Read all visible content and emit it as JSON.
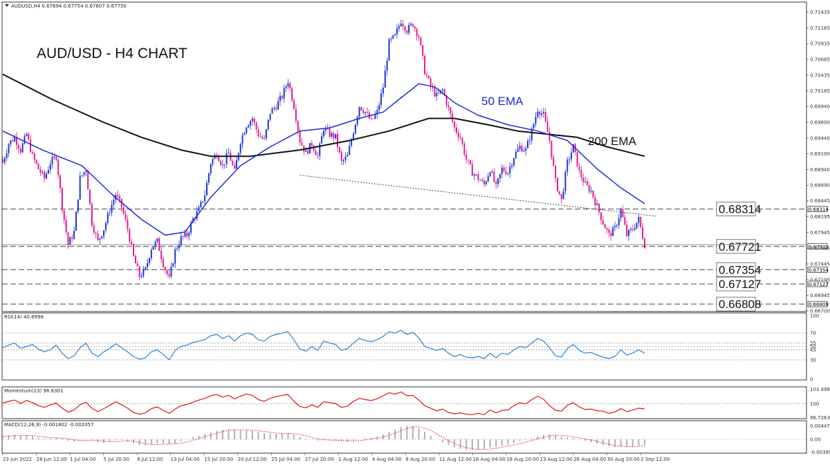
{
  "header": {
    "symbol_line": "AUDUSD,H4 0.67694 0.67754 0.67607 0.67750",
    "chart_title": "AUD/USD - H4 CHART"
  },
  "annotations": {
    "ema50": "50 EMA",
    "ema200": "200 EMA"
  },
  "colors": {
    "bull_candle": "#1a33d8",
    "bear_candle": "#e0188c",
    "ema50": "#1c2bd6",
    "ema200": "#111111",
    "rsi": "#2a82d4",
    "momentum": "#e01010",
    "macd_hist": "#b0b0b0",
    "macd_signal": "#e03030"
  },
  "chart_data": [
    {
      "type": "candlestick",
      "title": "AUD/USD - H4 CHART",
      "price_axis_ticks": [
        "0.71435",
        "0.71185",
        "0.70935",
        "0.70685",
        "0.70435",
        "0.70185",
        "0.69940",
        "0.69690",
        "0.69440",
        "0.69190",
        "0.68940",
        "0.68690",
        "0.68445",
        "0.68195",
        "0.67945",
        "0.67695",
        "0.67445",
        "0.67195",
        "0.66945",
        "0.66700"
      ],
      "ylim": [
        0.667,
        0.715
      ],
      "time_axis_labels": [
        "23 Jun 2022",
        "28 Jun 12:00",
        "1 Jul 04:00",
        "5 Jul 20:00",
        "8 Jul 12:00",
        "13 Jul 04:00",
        "15 Jul 20:00",
        "20 Jul 12:00",
        "25 Jul 04:00",
        "27 Jul 20:00",
        "1 Aug 12:00",
        "4 Aug 04:00",
        "8 Aug 20:00",
        "11 Aug 12:00",
        "16 Aug 04:00",
        "18 Aug 20:00",
        "23 Aug 12:00",
        "26 Aug 04:00",
        "30 Aug 20:00",
        "2 Sep 12:00"
      ],
      "close_path": [
        [
          0,
          0.6905
        ],
        [
          3,
          0.6935
        ],
        [
          6,
          0.6945
        ],
        [
          9,
          0.6925
        ],
        [
          12,
          0.695
        ],
        [
          15,
          0.6915
        ],
        [
          18,
          0.6895
        ],
        [
          21,
          0.688
        ],
        [
          24,
          0.6905
        ],
        [
          27,
          0.6915
        ],
        [
          30,
          0.6835
        ],
        [
          33,
          0.6775
        ],
        [
          36,
          0.6795
        ],
        [
          39,
          0.688
        ],
        [
          42,
          0.6895
        ],
        [
          45,
          0.681
        ],
        [
          48,
          0.678
        ],
        [
          51,
          0.68
        ],
        [
          54,
          0.683
        ],
        [
          57,
          0.6855
        ],
        [
          60,
          0.6835
        ],
        [
          63,
          0.68
        ],
        [
          66,
          0.6755
        ],
        [
          69,
          0.6725
        ],
        [
          72,
          0.6735
        ],
        [
          75,
          0.677
        ],
        [
          78,
          0.678
        ],
        [
          81,
          0.6745
        ],
        [
          84,
          0.672
        ],
        [
          87,
          0.6765
        ],
        [
          90,
          0.6785
        ],
        [
          93,
          0.679
        ],
        [
          96,
          0.6815
        ],
        [
          99,
          0.683
        ],
        [
          102,
          0.6855
        ],
        [
          105,
          0.6905
        ],
        [
          108,
          0.692
        ],
        [
          111,
          0.69
        ],
        [
          114,
          0.692
        ],
        [
          117,
          0.689
        ],
        [
          120,
          0.694
        ],
        [
          123,
          0.6965
        ],
        [
          126,
          0.6975
        ],
        [
          129,
          0.695
        ],
        [
          132,
          0.694
        ],
        [
          135,
          0.6985
        ],
        [
          138,
          0.6995
        ],
        [
          141,
          0.701
        ],
        [
          144,
          0.7035
        ],
        [
          147,
          0.6995
        ],
        [
          150,
          0.694
        ],
        [
          153,
          0.692
        ],
        [
          156,
          0.6935
        ],
        [
          159,
          0.6915
        ],
        [
          162,
          0.696
        ],
        [
          165,
          0.695
        ],
        [
          168,
          0.6945
        ],
        [
          171,
          0.6905
        ],
        [
          174,
          0.6915
        ],
        [
          177,
          0.6955
        ],
        [
          180,
          0.6995
        ],
        [
          183,
          0.6985
        ],
        [
          186,
          0.697
        ],
        [
          189,
          0.6985
        ],
        [
          192,
          0.7025
        ],
        [
          195,
          0.7095
        ],
        [
          198,
          0.7105
        ],
        [
          201,
          0.713
        ],
        [
          204,
          0.7115
        ],
        [
          207,
          0.7125
        ],
        [
          210,
          0.7105
        ],
        [
          213,
          0.705
        ],
        [
          216,
          0.7025
        ],
        [
          219,
          0.701
        ],
        [
          222,
          0.702
        ],
        [
          225,
          0.699
        ],
        [
          228,
          0.696
        ],
        [
          231,
          0.6945
        ],
        [
          234,
          0.691
        ],
        [
          237,
          0.689
        ],
        [
          240,
          0.688
        ],
        [
          243,
          0.687
        ],
        [
          246,
          0.6895
        ],
        [
          249,
          0.6865
        ],
        [
          252,
          0.6895
        ],
        [
          255,
          0.689
        ],
        [
          258,
          0.6915
        ],
        [
          261,
          0.693
        ],
        [
          264,
          0.6925
        ],
        [
          267,
          0.6955
        ],
        [
          270,
          0.699
        ],
        [
          273,
          0.698
        ],
        [
          276,
          0.694
        ],
        [
          279,
          0.6875
        ],
        [
          282,
          0.6845
        ],
        [
          285,
          0.6905
        ],
        [
          288,
          0.693
        ],
        [
          291,
          0.689
        ],
        [
          294,
          0.687
        ],
        [
          297,
          0.686
        ],
        [
          300,
          0.6835
        ],
        [
          303,
          0.681
        ],
        [
          306,
          0.679
        ],
        [
          309,
          0.68
        ],
        [
          312,
          0.683
        ],
        [
          315,
          0.679
        ],
        [
          318,
          0.68
        ],
        [
          321,
          0.6815
        ],
        [
          324,
          0.6775
        ]
      ],
      "ema_50": [
        [
          0,
          0.6955
        ],
        [
          20,
          0.6925
        ],
        [
          40,
          0.69
        ],
        [
          55,
          0.6855
        ],
        [
          70,
          0.6815
        ],
        [
          82,
          0.679
        ],
        [
          92,
          0.6795
        ],
        [
          105,
          0.685
        ],
        [
          120,
          0.69
        ],
        [
          135,
          0.693
        ],
        [
          150,
          0.6955
        ],
        [
          165,
          0.696
        ],
        [
          180,
          0.6975
        ],
        [
          192,
          0.6985
        ],
        [
          200,
          0.7005
        ],
        [
          210,
          0.703
        ],
        [
          218,
          0.7025
        ],
        [
          228,
          0.7
        ],
        [
          240,
          0.698
        ],
        [
          255,
          0.6965
        ],
        [
          270,
          0.6955
        ],
        [
          285,
          0.694
        ],
        [
          300,
          0.6895
        ],
        [
          312,
          0.6865
        ],
        [
          324,
          0.684
        ]
      ],
      "ema_200": [
        [
          0,
          0.7045
        ],
        [
          25,
          0.7005
        ],
        [
          50,
          0.697
        ],
        [
          70,
          0.6945
        ],
        [
          90,
          0.6925
        ],
        [
          105,
          0.6915
        ],
        [
          125,
          0.6915
        ],
        [
          150,
          0.6925
        ],
        [
          175,
          0.694
        ],
        [
          195,
          0.6955
        ],
        [
          215,
          0.6975
        ],
        [
          228,
          0.6975
        ],
        [
          245,
          0.6965
        ],
        [
          260,
          0.6955
        ],
        [
          275,
          0.695
        ],
        [
          290,
          0.6945
        ],
        [
          305,
          0.693
        ],
        [
          324,
          0.6915
        ]
      ],
      "trendline": [
        [
          150,
          0.6885
        ],
        [
          330,
          0.682
        ]
      ],
      "horizontal_levels": [
        {
          "value": 0.68314,
          "label": "0.68314"
        },
        {
          "value": 0.67721,
          "label": "0.67721"
        },
        {
          "value": 0.67354,
          "label": "0.67354"
        },
        {
          "value": 0.67127,
          "label": "0.67127"
        },
        {
          "value": 0.66808,
          "label": "0.66808"
        }
      ],
      "annotations": [
        "50 EMA",
        "200 EMA"
      ]
    },
    {
      "type": "line",
      "title": "RSI(14) 40.6998",
      "ylim": [
        0,
        100
      ],
      "axis_ticks": [
        "100",
        "70",
        "55",
        "50",
        "45",
        "30",
        "0"
      ],
      "reference_levels": [
        70,
        55,
        50,
        45,
        30
      ],
      "values": [
        48,
        52,
        55,
        47,
        50,
        53,
        46,
        42,
        45,
        52,
        40,
        32,
        36,
        48,
        55,
        40,
        35,
        42,
        47,
        54,
        48,
        42,
        35,
        31,
        33,
        42,
        45,
        38,
        30,
        44,
        50,
        52,
        56,
        58,
        60,
        66,
        68,
        62,
        66,
        58,
        66,
        70,
        68,
        60,
        58,
        65,
        68,
        70,
        72,
        60,
        46,
        43,
        50,
        44,
        58,
        55,
        53,
        44,
        47,
        55,
        62,
        59,
        57,
        60,
        65,
        72,
        70,
        74,
        68,
        71,
        63,
        50,
        47,
        44,
        47,
        40,
        35,
        38,
        34,
        33,
        35,
        32,
        40,
        33,
        40,
        38,
        45,
        50,
        48,
        55,
        62,
        58,
        48,
        36,
        34,
        47,
        53,
        44,
        40,
        41,
        37,
        34,
        32,
        35,
        45,
        37,
        40,
        45,
        40
      ]
    },
    {
      "type": "line",
      "title": "Momentum(23) 98.8301",
      "axis_ticks": [
        "103.4984",
        "100",
        "96.7263"
      ],
      "reference_levels": [
        100
      ],
      "values": [
        100.2,
        100.6,
        100.9,
        100.1,
        100.8,
        100.3,
        99.6,
        99.2,
        99.8,
        100.2,
        99.0,
        98.1,
        98.6,
        99.8,
        100.4,
        99.0,
        98.2,
        98.9,
        99.7,
        100.5,
        99.8,
        99.0,
        98.0,
        97.6,
        97.9,
        98.9,
        99.3,
        98.5,
        97.8,
        98.8,
        99.6,
        99.9,
        100.4,
        100.9,
        101.3,
        101.9,
        102.2,
        101.6,
        102.0,
        101.2,
        101.8,
        102.3,
        102.0,
        101.0,
        100.6,
        101.3,
        101.7,
        102.0,
        102.2,
        100.6,
        99.4,
        99.1,
        99.8,
        99.2,
        100.5,
        100.3,
        100.1,
        99.2,
        99.5,
        100.6,
        101.3,
        101.0,
        100.8,
        101.2,
        101.9,
        102.6,
        102.3,
        102.8,
        101.9,
        102.0,
        100.9,
        99.6,
        99.0,
        98.4,
        98.8,
        98.0,
        97.7,
        97.9,
        97.6,
        97.5,
        97.8,
        97.5,
        98.6,
        97.9,
        98.5,
        98.6,
        99.6,
        100.3,
        100.0,
        101.0,
        101.8,
        101.1,
        99.6,
        98.5,
        98.3,
        99.7,
        100.3,
        99.3,
        98.7,
        98.8,
        98.4,
        98.3,
        97.8,
        98.1,
        98.9,
        98.2,
        98.6,
        99.0,
        98.8
      ]
    },
    {
      "type": "bar",
      "title": "MACD(12,26,9) -0.001802 -0.002057",
      "axis_ticks": [
        "0.00447",
        "0.00",
        "-0.003999"
      ],
      "reference_levels": [
        0
      ],
      "values": [
        0.001,
        0.0012,
        0.0014,
        0.0011,
        0.0013,
        0.001,
        0.0006,
        0.0003,
        0.0004,
        0.0006,
        0.0002,
        -0.0005,
        -0.0008,
        -0.0004,
        0.0001,
        -0.0003,
        -0.0009,
        -0.0011,
        -0.0008,
        -0.0003,
        -0.0002,
        -0.0006,
        -0.0012,
        -0.0018,
        -0.002,
        -0.0017,
        -0.0013,
        -0.0014,
        -0.0017,
        -0.0013,
        -0.0006,
        0.0,
        0.0006,
        0.0012,
        0.0017,
        0.0023,
        0.0028,
        0.0031,
        0.0033,
        0.0032,
        0.003,
        0.0029,
        0.0028,
        0.0025,
        0.0021,
        0.0019,
        0.0018,
        0.0019,
        0.002,
        0.0015,
        0.0008,
        0.0002,
        0.0,
        -0.0004,
        -0.0003,
        -0.0002,
        -0.0003,
        -0.0006,
        -0.0007,
        -0.0004,
        0.0,
        0.0003,
        0.0005,
        0.0009,
        0.0015,
        0.0024,
        0.0033,
        0.004,
        0.0044,
        0.0043,
        0.0036,
        0.0024,
        0.0012,
        0.0,
        -0.001,
        -0.0018,
        -0.0025,
        -0.003,
        -0.0033,
        -0.0034,
        -0.0033,
        -0.0031,
        -0.0027,
        -0.0024,
        -0.002,
        -0.0017,
        -0.0012,
        -0.0006,
        -0.0002,
        0.0004,
        0.001,
        0.0015,
        0.0016,
        0.0013,
        0.0008,
        0.0006,
        0.0004,
        0.0001,
        -0.0004,
        -0.0009,
        -0.0014,
        -0.0018,
        -0.0022,
        -0.0025,
        -0.0024,
        -0.0023,
        -0.0022,
        -0.002,
        -0.0018
      ]
    }
  ]
}
